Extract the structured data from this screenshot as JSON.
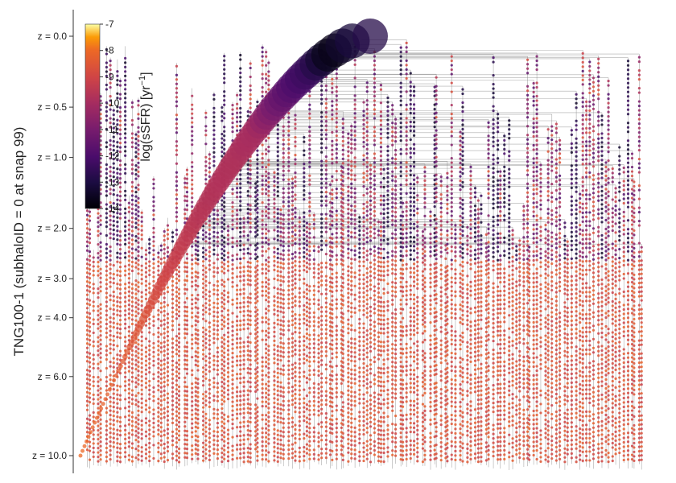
{
  "chart_data": {
    "type": "scatter",
    "ylabel": "TNG100-1 (subhaloID = 0 at snap 99)",
    "y_axis": {
      "scale": "log(1+z)",
      "reversed": true,
      "ticks": [
        {
          "z": 0.0,
          "label": "z = 0.0"
        },
        {
          "z": 0.5,
          "label": "z = 0.5"
        },
        {
          "z": 1.0,
          "label": "z = 1.0"
        },
        {
          "z": 2.0,
          "label": "z = 2.0"
        },
        {
          "z": 3.0,
          "label": "z = 3.0"
        },
        {
          "z": 4.0,
          "label": "z = 4.0"
        },
        {
          "z": 6.0,
          "label": "z = 6.0"
        },
        {
          "z": 10.0,
          "label": "z = 10.0"
        }
      ]
    },
    "x_axis": {
      "visible": false
    },
    "colorbar": {
      "label": "log(sSFR) [yr",
      "label_superscript": "−1",
      "label_close": "]",
      "range": [
        -14,
        -7
      ],
      "colormap": "inferno",
      "ticks": [
        {
          "value": -7,
          "label": "-7"
        },
        {
          "value": -8,
          "label": "-8"
        },
        {
          "value": -9,
          "label": "-9"
        },
        {
          "value": -10,
          "label": "-10"
        },
        {
          "value": -11,
          "label": "-11"
        },
        {
          "value": -12,
          "label": "-12"
        },
        {
          "value": -13,
          "label": "-13"
        },
        {
          "value": -14,
          "label": "-14"
        }
      ]
    },
    "main_branch": [
      {
        "z": 0.0,
        "log_ssfr": -12.8
      },
      {
        "z": 0.1,
        "log_ssfr": -13.8
      },
      {
        "z": 0.2,
        "log_ssfr": -12.5
      },
      {
        "z": 0.3,
        "log_ssfr": -12.0
      },
      {
        "z": 0.5,
        "log_ssfr": -11.0
      },
      {
        "z": 0.7,
        "log_ssfr": -10.0
      },
      {
        "z": 1.0,
        "log_ssfr": -9.8
      },
      {
        "z": 1.5,
        "log_ssfr": -9.7
      },
      {
        "z": 2.0,
        "log_ssfr": -9.5
      },
      {
        "z": 3.0,
        "log_ssfr": -9.0
      },
      {
        "z": 4.0,
        "log_ssfr": -8.6
      },
      {
        "z": 6.0,
        "log_ssfr": -8.3
      },
      {
        "z": 10.0,
        "log_ssfr": -8.0
      }
    ],
    "grid": false,
    "legend": "none"
  }
}
